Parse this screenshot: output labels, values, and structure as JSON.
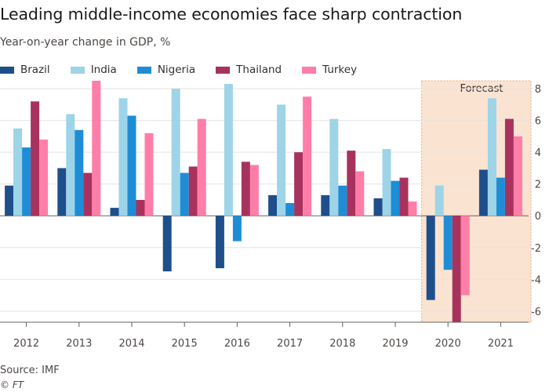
{
  "header": {
    "title": "Leading middle-income economies face sharp contraction",
    "subtitle": "Year-on-year change in GDP, %"
  },
  "footer": {
    "source": "Source: IMF",
    "credit": "© FT"
  },
  "colors": {
    "Brazil": "#1e4f8b",
    "India": "#9dd4e8",
    "Nigeria": "#1f8dd6",
    "Thailand": "#a8325e",
    "Turkey": "#ff7ea8",
    "forecast_shade": "#fbe3d1",
    "grid": "#e6e3e0",
    "zero": "#66605c"
  },
  "chart_data": {
    "type": "bar",
    "title": "Leading middle-income economies face sharp contraction",
    "subtitle": "Year-on-year change in GDP, %",
    "categories": [
      "2012",
      "2013",
      "2014",
      "2015",
      "2016",
      "2017",
      "2018",
      "2019",
      "2020",
      "2021"
    ],
    "series": [
      {
        "name": "Brazil",
        "values": [
          1.9,
          3.0,
          0.5,
          -3.5,
          -3.3,
          1.3,
          1.3,
          1.1,
          -5.3,
          2.9
        ]
      },
      {
        "name": "India",
        "values": [
          5.5,
          6.4,
          7.4,
          8.0,
          8.3,
          7.0,
          6.1,
          4.2,
          1.9,
          7.4
        ]
      },
      {
        "name": "Nigeria",
        "values": [
          4.3,
          5.4,
          6.3,
          2.7,
          -1.6,
          0.8,
          1.9,
          2.2,
          -3.4,
          2.4
        ]
      },
      {
        "name": "Thailand",
        "values": [
          7.2,
          2.7,
          1.0,
          3.1,
          3.4,
          4.0,
          4.1,
          2.4,
          -6.7,
          6.1
        ]
      },
      {
        "name": "Turkey",
        "values": [
          4.8,
          8.5,
          5.2,
          6.1,
          3.2,
          7.5,
          2.8,
          0.9,
          -5.0,
          5.0
        ]
      }
    ],
    "ylim": [
      -6.7,
      8.5
    ],
    "yticks": [
      -6,
      -4,
      -2,
      0,
      2,
      4,
      6,
      8
    ],
    "forecast": {
      "label": "Forecast",
      "categories": [
        "2020",
        "2021"
      ]
    },
    "grid": true,
    "y_axis_side": "right",
    "legend_position": "top-left"
  }
}
